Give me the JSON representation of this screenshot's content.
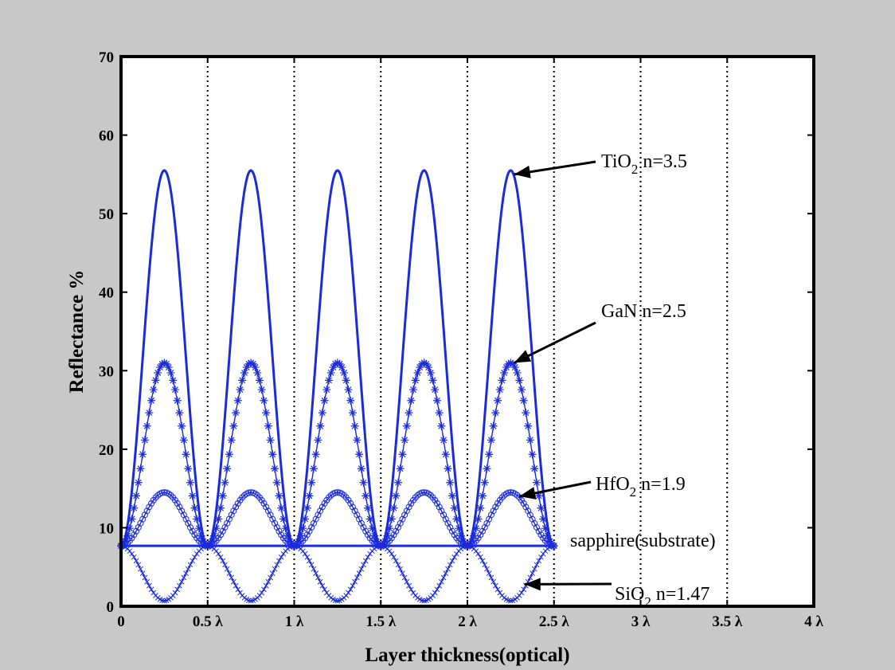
{
  "chart_data": {
    "type": "line",
    "title": "",
    "xlabel": "Layer thickness(optical)",
    "ylabel": "Reflectance %",
    "xlim": [
      0,
      4
    ],
    "ylim": [
      0,
      70
    ],
    "x_ticks": [
      {
        "value": 0,
        "label": "0"
      },
      {
        "value": 0.5,
        "label": "0.5 λ"
      },
      {
        "value": 1,
        "label": "1 λ"
      },
      {
        "value": 1.5,
        "label": "1.5 λ"
      },
      {
        "value": 2,
        "label": "2 λ"
      },
      {
        "value": 2.5,
        "label": "2.5 λ"
      },
      {
        "value": 3,
        "label": "3 λ"
      },
      {
        "value": 3.5,
        "label": "3.5 λ"
      },
      {
        "value": 4,
        "label": "4 λ"
      }
    ],
    "y_ticks": [
      0,
      10,
      20,
      30,
      40,
      50,
      60,
      70
    ],
    "grid": "vertical dotted lines at x ticks",
    "line_color": "#1a2bdc",
    "series": [
      {
        "name": "TiO2 n=3.5",
        "marker": "none",
        "x_range": [
          0,
          2.5
        ],
        "min": 7.7,
        "max": 55.5,
        "period": 0.5,
        "peaks_at": [
          0.25,
          0.75,
          1.25,
          1.75,
          2.25
        ]
      },
      {
        "name": "GaN n=2.5",
        "marker": "star",
        "x_range": [
          0,
          2.5
        ],
        "min": 7.7,
        "max": 31,
        "period": 0.5,
        "peaks_at": [
          0.25,
          0.75,
          1.25,
          1.75,
          2.25
        ]
      },
      {
        "name": "HfO2 n=1.9",
        "marker": "circle",
        "x_range": [
          0,
          2.5
        ],
        "min": 7.7,
        "max": 14.5,
        "period": 0.5,
        "peaks_at": [
          0.25,
          0.75,
          1.25,
          1.75,
          2.25
        ]
      },
      {
        "name": "sapphire(substrate)",
        "marker": "none",
        "x_range": [
          0,
          2.5
        ],
        "min": 7.7,
        "max": 7.7
      },
      {
        "name": "SiO2 n=1.47",
        "marker": "x",
        "x_range": [
          0,
          2.5
        ],
        "min": 0.7,
        "max": 7.7,
        "period": 0.5,
        "minima_at": [
          0.25,
          0.75,
          1.25,
          1.75,
          2.25
        ]
      }
    ],
    "annotations": [
      {
        "base": "TiO",
        "sub": "2",
        "rest": "  n=3.5",
        "arrow_to": [
          2.27,
          55
        ]
      },
      {
        "base": "GaN  n=2.5",
        "sub": "",
        "rest": "",
        "arrow_to": [
          2.27,
          31
        ]
      },
      {
        "base": "HfO",
        "sub": "2",
        "rest": " n=1.9",
        "arrow_to": [
          2.3,
          14
        ]
      },
      {
        "base": "sapphire(substrate)",
        "sub": "",
        "rest": "",
        "arrow_to": null
      },
      {
        "base": "SiO",
        "sub": "2",
        "rest": " n=1.47",
        "arrow_to": [
          2.33,
          2.8
        ]
      }
    ]
  }
}
